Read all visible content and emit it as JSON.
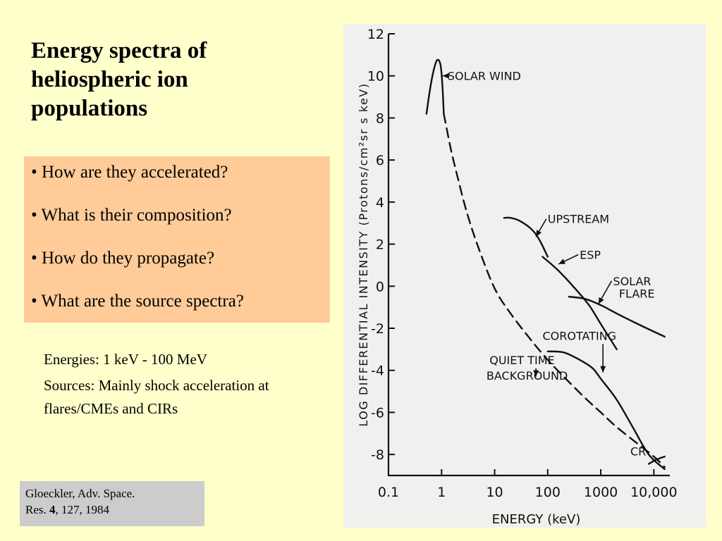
{
  "slide": {
    "title": "Energy spectra of heliospheric ion populations",
    "questions": [
      "• How are they accelerated?",
      "• What is their composition?",
      "• How do they propagate?",
      "• What are the source spectra?"
    ],
    "notes": [
      "Energies: 1 keV - 100 MeV",
      "Sources: Mainly shock acceleration at flares/CMEs and CIRs"
    ],
    "citation": {
      "line1": "Gloeckler, Adv. Space.",
      "prefix": "Res. ",
      "volume": "4",
      "suffix": ", 127, 1984"
    }
  },
  "chart_data": {
    "type": "line",
    "xlabel": "ENERGY (keV)",
    "ylabel": "LOG DIFFERENTIAL INTENSITY (Protons/cm²sr s keV)",
    "xscale": "log",
    "xlim": [
      0.1,
      20000
    ],
    "ylim": [
      -9,
      12
    ],
    "xticks": [
      0.1,
      1,
      10,
      100,
      1000,
      10000
    ],
    "xtick_labels": [
      "0.1",
      "1",
      "10",
      "100",
      "1000",
      "10,000"
    ],
    "yticks": [
      -8,
      -6,
      -4,
      -2,
      0,
      2,
      4,
      6,
      8,
      10,
      12
    ],
    "ytick_labels": [
      "-8",
      "-6",
      "-4",
      "-2",
      "0",
      "2",
      "4",
      "6",
      "8",
      "10",
      "12"
    ],
    "colors": {
      "ink": "#111111",
      "panel": "#f0f0ee"
    },
    "series": [
      {
        "name": "SOLAR WIND",
        "style": "solid",
        "x": [
          0.52,
          0.6,
          0.7,
          0.8,
          0.88,
          0.95,
          1.0,
          1.05,
          1.1
        ],
        "y": [
          8.2,
          9.3,
          10.2,
          10.7,
          10.75,
          10.55,
          10.1,
          9.3,
          8.2
        ]
      },
      {
        "name": "QUIET TIME BACKGROUND",
        "style": "dashed",
        "x": [
          1.1,
          1.5,
          2,
          3,
          5,
          10,
          20,
          50,
          100,
          200,
          500,
          1000,
          2000,
          5000,
          10000,
          16000
        ],
        "y": [
          8.2,
          6.5,
          5.2,
          3.5,
          1.8,
          -0.1,
          -1.3,
          -2.6,
          -3.5,
          -4.3,
          -5.3,
          -6.0,
          -6.7,
          -7.5,
          -8.1,
          -8.6
        ]
      },
      {
        "name": "UPSTREAM",
        "style": "solid",
        "x": [
          15,
          20,
          30,
          50,
          70,
          100
        ],
        "y": [
          3.25,
          3.25,
          3.1,
          2.7,
          2.2,
          1.4
        ]
      },
      {
        "name": "ESP",
        "style": "solid",
        "x": [
          80,
          150,
          300,
          600,
          1000,
          2000
        ],
        "y": [
          1.4,
          0.8,
          0.0,
          -0.9,
          -1.8,
          -3.0
        ]
      },
      {
        "name": "SOLAR FLARE",
        "style": "solid",
        "x": [
          250,
          500,
          1000,
          2000,
          5000,
          16000
        ],
        "y": [
          -0.5,
          -0.6,
          -0.9,
          -1.3,
          -1.8,
          -2.4
        ]
      },
      {
        "name": "COROTATING",
        "style": "solid",
        "x": [
          100,
          200,
          400,
          700,
          1000,
          2000,
          4000,
          8000,
          16000
        ],
        "y": [
          -3.1,
          -3.15,
          -3.5,
          -3.9,
          -4.4,
          -5.4,
          -6.7,
          -8.0,
          -8.7
        ]
      },
      {
        "name": "CR",
        "style": "solid",
        "x": [
          8000,
          11000,
          16000
        ],
        "y": [
          -8.45,
          -8.25,
          -8.1
        ]
      }
    ],
    "annotations": [
      {
        "text": "SOLAR WIND",
        "x": 1.3,
        "y": 9.8,
        "arrow_to": [
          1.05,
          10.0
        ]
      },
      {
        "text": "UPSTREAM",
        "x": 100,
        "y": 3.0,
        "arrow_to": [
          60,
          2.35
        ]
      },
      {
        "text": "ESP",
        "x": 400,
        "y": 1.3,
        "arrow_to": [
          160,
          1.05
        ]
      },
      {
        "text": "SOLAR",
        "x": 1700,
        "y": 0.05,
        "arrow_to": [
          900,
          -0.85
        ]
      },
      {
        "text": "FLARE",
        "x": 2200,
        "y": -0.55
      },
      {
        "text": "COROTATING",
        "x": 80,
        "y": -2.55,
        "arrow_to": [
          1100,
          -4.1
        ]
      },
      {
        "text": "QUIET TIME",
        "x": 8,
        "y": -3.7,
        "arrow_to": [
          60,
          -4.3
        ]
      },
      {
        "text": "BACKGROUND",
        "x": 7,
        "y": -4.45
      },
      {
        "text": "CR",
        "x": 3600,
        "y": -8.05
      }
    ]
  }
}
